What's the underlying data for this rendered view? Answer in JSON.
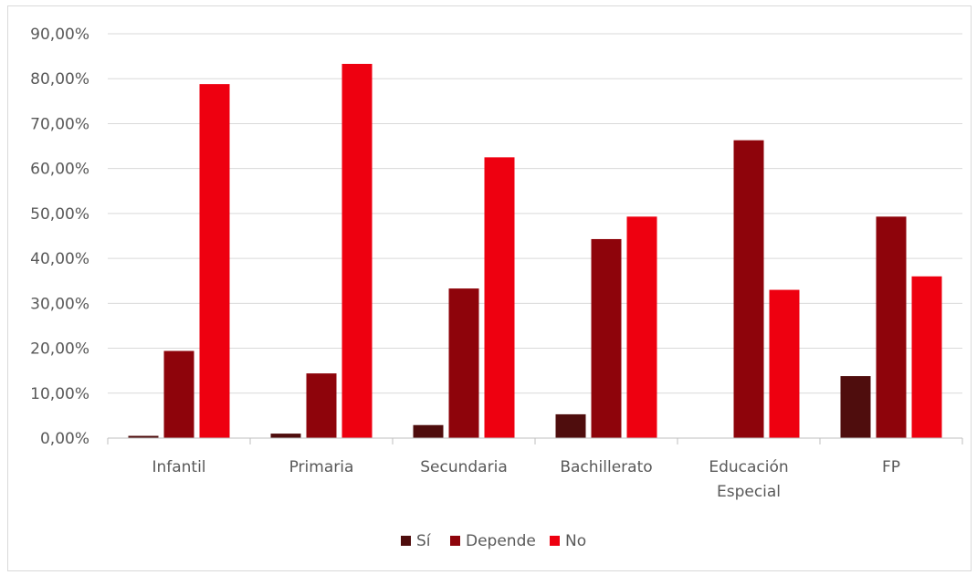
{
  "chart_data": {
    "type": "bar",
    "categories": [
      [
        "Infantil"
      ],
      [
        "Primaria"
      ],
      [
        "Secundaria"
      ],
      [
        "Bachillerato"
      ],
      [
        "Educación",
        "Especial"
      ],
      [
        "FP"
      ]
    ],
    "series": [
      {
        "name": "Sí",
        "color": "#4f0d0d",
        "values": [
          0.5,
          1.0,
          2.9,
          5.3,
          0.0,
          13.8
        ]
      },
      {
        "name": "Depende",
        "color": "#8e040b",
        "values": [
          19.4,
          14.4,
          33.3,
          44.3,
          66.3,
          49.3
        ]
      },
      {
        "name": "No",
        "color": "#ee0010",
        "values": [
          78.8,
          83.3,
          62.5,
          49.3,
          33.0,
          36.0
        ]
      }
    ],
    "ylim": [
      0,
      90
    ],
    "yticks": [
      "0,00%",
      "10,00%",
      "20,00%",
      "30,00%",
      "40,00%",
      "50,00%",
      "60,00%",
      "70,00%",
      "80,00%",
      "90,00%"
    ],
    "ytick_values": [
      0,
      10,
      20,
      30,
      40,
      50,
      60,
      70,
      80,
      90
    ],
    "grid": true,
    "legend_position": "bottom"
  }
}
